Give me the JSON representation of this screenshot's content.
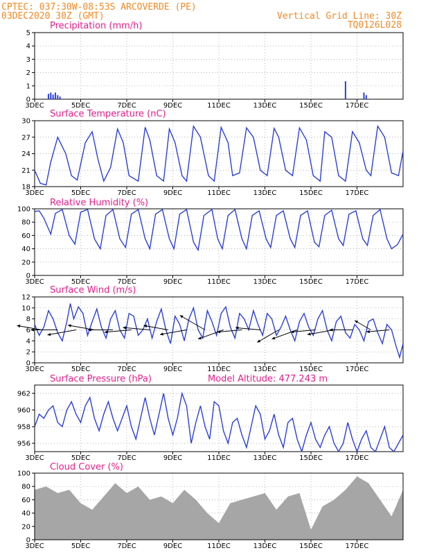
{
  "header": {
    "line1_left": "CPTEC:   037:30W-08:53S  ARCOVERDE (PE)",
    "line2_left": "03DEC2020 30Z (GMT)",
    "line1_right": "Vertical Grid Line: 30Z",
    "line2_right": "TQ0126L028"
  },
  "colors": {
    "series": "#2b3fd6",
    "cloud": "#a6a6a6",
    "title": "#e0208c",
    "header": "#f08a24"
  },
  "x_axis": {
    "ticks": [
      "3DEC",
      "5DEC",
      "7DEC",
      "9DEC",
      "11DEC",
      "13DEC",
      "15DEC",
      "17DEC"
    ],
    "tick_days": [
      0,
      2,
      4,
      6,
      8,
      10,
      12,
      14
    ],
    "grid_days": [
      0,
      2,
      4,
      6,
      8,
      10,
      12,
      14
    ],
    "range_days": [
      0,
      16
    ]
  },
  "panels": {
    "precip": {
      "title": "Precipitation (mm/h)"
    },
    "temp": {
      "title": "Surface Temperature (nC)"
    },
    "rh": {
      "title": "Relative Humidity (%)"
    },
    "wind": {
      "title": "Surface Wind (m/s)"
    },
    "pres": {
      "title": "Surface Pressure (hPa)",
      "altitude": "Model Altitude: 477.243 m"
    },
    "cloud": {
      "title": "Cloud Cover (%)"
    }
  },
  "chart_data": [
    {
      "id": "precip",
      "type": "bar",
      "ylim": [
        0,
        5
      ],
      "yticks": [
        0,
        1,
        2,
        3,
        4,
        5
      ],
      "x": [
        0.6,
        0.7,
        0.8,
        0.9,
        1.0,
        1.1,
        13.5,
        14.3,
        14.4
      ],
      "values": [
        0.4,
        0.5,
        0.35,
        0.5,
        0.3,
        0.2,
        1.35,
        0.5,
        0.3
      ]
    },
    {
      "id": "temp",
      "type": "line",
      "ylim": [
        18,
        30
      ],
      "yticks": [
        18,
        21,
        24,
        27,
        30
      ],
      "x": [
        0,
        0.25,
        0.5,
        0.7,
        1.0,
        1.35,
        1.6,
        1.85,
        2.2,
        2.5,
        2.75,
        3.0,
        3.3,
        3.6,
        3.85,
        4.1,
        4.5,
        4.8,
        5.0,
        5.3,
        5.6,
        5.85,
        6.1,
        6.4,
        6.6,
        6.9,
        7.2,
        7.55,
        7.8,
        8.1,
        8.4,
        8.6,
        8.9,
        9.2,
        9.5,
        9.8,
        10.1,
        10.4,
        10.6,
        10.9,
        11.2,
        11.5,
        11.8,
        12.1,
        12.4,
        12.6,
        12.9,
        13.2,
        13.5,
        13.8,
        14.1,
        14.4,
        14.6,
        14.9,
        15.2,
        15.5,
        15.8,
        16.0
      ],
      "values": [
        21.0,
        18.6,
        18.3,
        22.5,
        27.0,
        24.0,
        20.0,
        19.2,
        26.0,
        28.0,
        23.0,
        19.0,
        21.5,
        28.5,
        26.0,
        20.0,
        19.0,
        28.8,
        26.5,
        20.0,
        19.0,
        28.5,
        26.0,
        20.0,
        19.0,
        29.0,
        27.0,
        20.0,
        19.0,
        28.8,
        26.0,
        20.0,
        20.5,
        28.7,
        27.0,
        21.0,
        20.0,
        28.6,
        27.0,
        21.0,
        20.0,
        28.7,
        26.5,
        20.0,
        19.0,
        28.0,
        27.0,
        20.0,
        19.0,
        28.0,
        26.0,
        21.0,
        20.0,
        29.0,
        27.0,
        20.5,
        20.0,
        24.5
      ]
    },
    {
      "id": "rh",
      "type": "line",
      "ylim": [
        0,
        100
      ],
      "yticks": [
        0,
        20,
        40,
        60,
        80,
        100
      ],
      "x": [
        0,
        0.2,
        0.4,
        0.7,
        0.9,
        1.2,
        1.5,
        1.75,
        2.0,
        2.3,
        2.6,
        2.85,
        3.1,
        3.4,
        3.7,
        3.95,
        4.2,
        4.5,
        4.8,
        5.0,
        5.25,
        5.55,
        5.85,
        6.05,
        6.3,
        6.6,
        6.9,
        7.1,
        7.35,
        7.7,
        7.95,
        8.15,
        8.4,
        8.7,
        9.0,
        9.2,
        9.45,
        9.75,
        10.05,
        10.25,
        10.5,
        10.8,
        11.1,
        11.3,
        11.55,
        11.85,
        12.15,
        12.35,
        12.6,
        12.9,
        13.2,
        13.4,
        13.65,
        13.95,
        14.25,
        14.45,
        14.7,
        15.0,
        15.3,
        15.5,
        15.75,
        16.0
      ],
      "values": [
        96,
        97,
        86,
        62,
        93,
        99,
        60,
        47,
        95,
        99,
        55,
        40,
        90,
        99,
        55,
        42,
        92,
        99,
        55,
        40,
        92,
        99,
        55,
        40,
        92,
        99,
        50,
        38,
        90,
        99,
        55,
        40,
        90,
        99,
        55,
        40,
        90,
        97,
        55,
        42,
        90,
        97,
        55,
        42,
        90,
        97,
        50,
        43,
        90,
        98,
        55,
        45,
        92,
        97,
        55,
        45,
        90,
        99,
        55,
        40,
        46,
        62
      ]
    },
    {
      "id": "wind",
      "type": "line",
      "ylim": [
        0,
        12
      ],
      "yticks": [
        0,
        2,
        4,
        6,
        8,
        10,
        12
      ],
      "x": [
        0,
        0.2,
        0.4,
        0.6,
        0.8,
        1.0,
        1.2,
        1.4,
        1.55,
        1.7,
        1.9,
        2.1,
        2.3,
        2.5,
        2.7,
        2.9,
        3.1,
        3.3,
        3.5,
        3.7,
        3.9,
        4.1,
        4.3,
        4.5,
        4.7,
        4.9,
        5.1,
        5.3,
        5.5,
        5.7,
        5.9,
        6.1,
        6.3,
        6.5,
        6.7,
        6.9,
        7.1,
        7.3,
        7.5,
        7.7,
        7.9,
        8.1,
        8.3,
        8.5,
        8.7,
        8.9,
        9.1,
        9.3,
        9.5,
        9.7,
        9.9,
        10.1,
        10.3,
        10.5,
        10.7,
        10.9,
        11.1,
        11.3,
        11.5,
        11.7,
        11.9,
        12.1,
        12.3,
        12.5,
        12.7,
        12.9,
        13.1,
        13.3,
        13.5,
        13.7,
        13.9,
        14.1,
        14.3,
        14.5,
        14.7,
        14.9,
        15.1,
        15.3,
        15.5,
        15.7,
        15.85,
        16.0
      ],
      "values": [
        7.0,
        5.0,
        6.5,
        9.5,
        8.0,
        5.5,
        4.0,
        7.5,
        10.8,
        8.0,
        10.2,
        9.0,
        5.0,
        7.5,
        9.8,
        6.5,
        4.5,
        8.0,
        9.5,
        6.0,
        4.5,
        9.0,
        8.5,
        5.0,
        6.0,
        8.0,
        4.5,
        7.5,
        9.8,
        6.0,
        3.5,
        8.5,
        7.0,
        4.0,
        8.0,
        10.0,
        6.0,
        4.5,
        9.5,
        7.5,
        5.0,
        9.0,
        10.2,
        6.5,
        4.5,
        9.0,
        8.0,
        6.0,
        9.5,
        7.0,
        5.0,
        9.0,
        8.0,
        5.0,
        6.5,
        8.5,
        6.0,
        4.0,
        7.5,
        9.0,
        6.5,
        5.0,
        8.0,
        9.5,
        6.0,
        4.0,
        7.5,
        8.5,
        5.5,
        4.5,
        7.0,
        6.0,
        4.0,
        7.5,
        8.0,
        5.5,
        3.5,
        7.0,
        6.0,
        3.0,
        1.0,
        3.5
      ]
    },
    {
      "id": "wind_vectors",
      "type": "scatter",
      "x": [
        0.3,
        1.0,
        1.8,
        2.6,
        3.4,
        4.2,
        5.0,
        5.8,
        6.6,
        7.4,
        8.2,
        9.0,
        9.8,
        10.6,
        11.4,
        12.2,
        13.0,
        13.8,
        14.6,
        15.4
      ],
      "speed": [
        6,
        6.5,
        7,
        6.5,
        6,
        6.5,
        6.5,
        6,
        6.5,
        7,
        6.5,
        6,
        6,
        6,
        6.5,
        6,
        6.5,
        5.5,
        4.5,
        5.5
      ],
      "dir_deg": [
        80,
        90,
        100,
        80,
        90,
        95,
        85,
        80,
        100,
        60,
        110,
        95,
        85,
        120,
        110,
        95,
        100,
        90,
        60,
        95
      ]
    },
    {
      "id": "pres",
      "type": "line",
      "ylim": [
        955,
        963
      ],
      "yticks": [
        956,
        958,
        960,
        962
      ],
      "x": [
        0,
        0.2,
        0.4,
        0.6,
        0.8,
        1.0,
        1.2,
        1.4,
        1.6,
        1.8,
        2.0,
        2.2,
        2.4,
        2.6,
        2.8,
        3.0,
        3.2,
        3.4,
        3.6,
        3.8,
        4.0,
        4.2,
        4.4,
        4.6,
        4.8,
        5.0,
        5.2,
        5.4,
        5.6,
        5.8,
        6.0,
        6.2,
        6.4,
        6.6,
        6.8,
        7.0,
        7.2,
        7.4,
        7.6,
        7.8,
        8.0,
        8.2,
        8.4,
        8.6,
        8.8,
        9.0,
        9.2,
        9.4,
        9.6,
        9.8,
        10.0,
        10.2,
        10.4,
        10.6,
        10.8,
        11.0,
        11.2,
        11.4,
        11.6,
        11.8,
        12.0,
        12.2,
        12.4,
        12.6,
        12.8,
        13.0,
        13.2,
        13.4,
        13.6,
        13.8,
        14.0,
        14.2,
        14.4,
        14.6,
        14.8,
        15.0,
        15.2,
        15.4,
        15.6,
        15.8,
        16.0
      ],
      "values": [
        958.0,
        959.5,
        959.0,
        960.0,
        960.5,
        958.5,
        958.0,
        960.0,
        961.0,
        959.5,
        958.5,
        960.5,
        961.5,
        959.0,
        957.5,
        959.5,
        961.0,
        959.0,
        957.5,
        959.0,
        960.5,
        958.0,
        956.5,
        959.0,
        961.5,
        959.0,
        957.0,
        959.5,
        962.0,
        959.0,
        957.0,
        959.0,
        962.0,
        960.5,
        956.0,
        958.5,
        960.5,
        958.0,
        956.5,
        961.0,
        960.5,
        957.5,
        956.0,
        958.5,
        959.0,
        957.0,
        955.5,
        958.0,
        960.5,
        959.5,
        956.5,
        957.5,
        959.5,
        957.0,
        955.5,
        958.5,
        959.0,
        956.5,
        955.0,
        957.0,
        958.5,
        956.5,
        955.5,
        957.0,
        958.0,
        956.0,
        955.0,
        956.0,
        958.5,
        956.5,
        955.0,
        956.5,
        957.5,
        955.5,
        955.0,
        956.5,
        958.0,
        955.5,
        955.0,
        956.0,
        957.0
      ]
    },
    {
      "id": "cloud",
      "type": "area",
      "ylim": [
        0,
        100
      ],
      "yticks": [
        0,
        20,
        40,
        60,
        80,
        100
      ],
      "x": [
        0,
        0.5,
        1.0,
        1.5,
        2.0,
        2.5,
        3.0,
        3.5,
        4.0,
        4.5,
        5.0,
        5.5,
        6.0,
        6.5,
        7.0,
        7.5,
        8.0,
        8.5,
        9.0,
        9.5,
        10.0,
        10.5,
        11.0,
        11.5,
        12.0,
        12.5,
        13.0,
        13.5,
        14.0,
        14.5,
        15.0,
        15.5,
        16.0
      ],
      "values": [
        75,
        80,
        70,
        75,
        55,
        45,
        65,
        85,
        70,
        80,
        60,
        65,
        55,
        75,
        60,
        40,
        25,
        55,
        60,
        65,
        70,
        45,
        65,
        70,
        15,
        50,
        60,
        75,
        95,
        85,
        60,
        35,
        75
      ]
    }
  ]
}
